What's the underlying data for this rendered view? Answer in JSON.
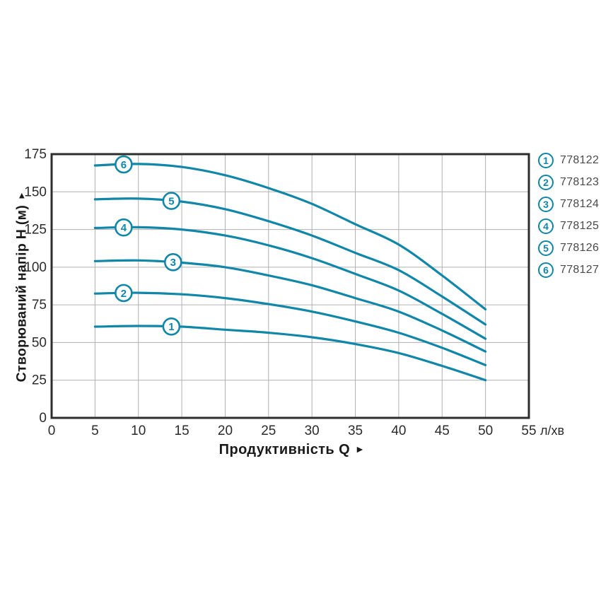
{
  "colors": {
    "curve": "#1086a8",
    "marker_fill": "#ffffff",
    "grid": "#b0b0b0",
    "plot_border": "#2d2d2d",
    "tick_text": "#2b2b2b",
    "axis_title_text": "#1a1a1a",
    "legend_text": "#4a4a4a",
    "background": "#ffffff"
  },
  "chart_data": {
    "type": "line",
    "title": "",
    "xlabel": "Продуктивність Q",
    "xlabel_arrow": "►",
    "ylabel": "Створюваний напір Н (м)",
    "ylabel_arrow": "▲",
    "x_unit": "л/хв",
    "xlim": [
      0,
      55
    ],
    "ylim": [
      0,
      175
    ],
    "x_ticks": [
      0,
      5,
      10,
      15,
      20,
      25,
      30,
      35,
      40,
      45,
      50,
      55
    ],
    "y_ticks": [
      0,
      25,
      50,
      75,
      100,
      125,
      150,
      175
    ],
    "grid": true,
    "legend_position": "right-outside",
    "x": [
      5,
      10,
      15,
      20,
      25,
      30,
      35,
      40,
      45,
      50
    ],
    "series": [
      {
        "num": "1",
        "model": "778122",
        "label_q": 13.8,
        "values": [
          60.5,
          61,
          60.5,
          58.5,
          56.5,
          53.5,
          49,
          43,
          34.5,
          25
        ]
      },
      {
        "num": "2",
        "model": "778123",
        "label_q": 8.3,
        "values": [
          82.5,
          83,
          82,
          79.5,
          75.5,
          70.5,
          64,
          56.5,
          46.5,
          35
        ]
      },
      {
        "num": "3",
        "model": "778124",
        "label_q": 14,
        "values": [
          104,
          104.5,
          103,
          100,
          94.5,
          88,
          79.5,
          70.5,
          58,
          44
        ]
      },
      {
        "num": "4",
        "model": "778125",
        "label_q": 8.3,
        "values": [
          126,
          126.5,
          125,
          121,
          114.5,
          106,
          95.5,
          84.5,
          69,
          52.5
        ]
      },
      {
        "num": "5",
        "model": "778126",
        "label_q": 13.8,
        "values": [
          145,
          145.5,
          143.5,
          138.5,
          130.5,
          121,
          109.5,
          98,
          80.5,
          62
        ]
      },
      {
        "num": "6",
        "model": "778127",
        "label_q": 8.3,
        "values": [
          167.5,
          168.5,
          166.5,
          161,
          152.5,
          142,
          128.5,
          115,
          94.5,
          72
        ]
      }
    ]
  }
}
